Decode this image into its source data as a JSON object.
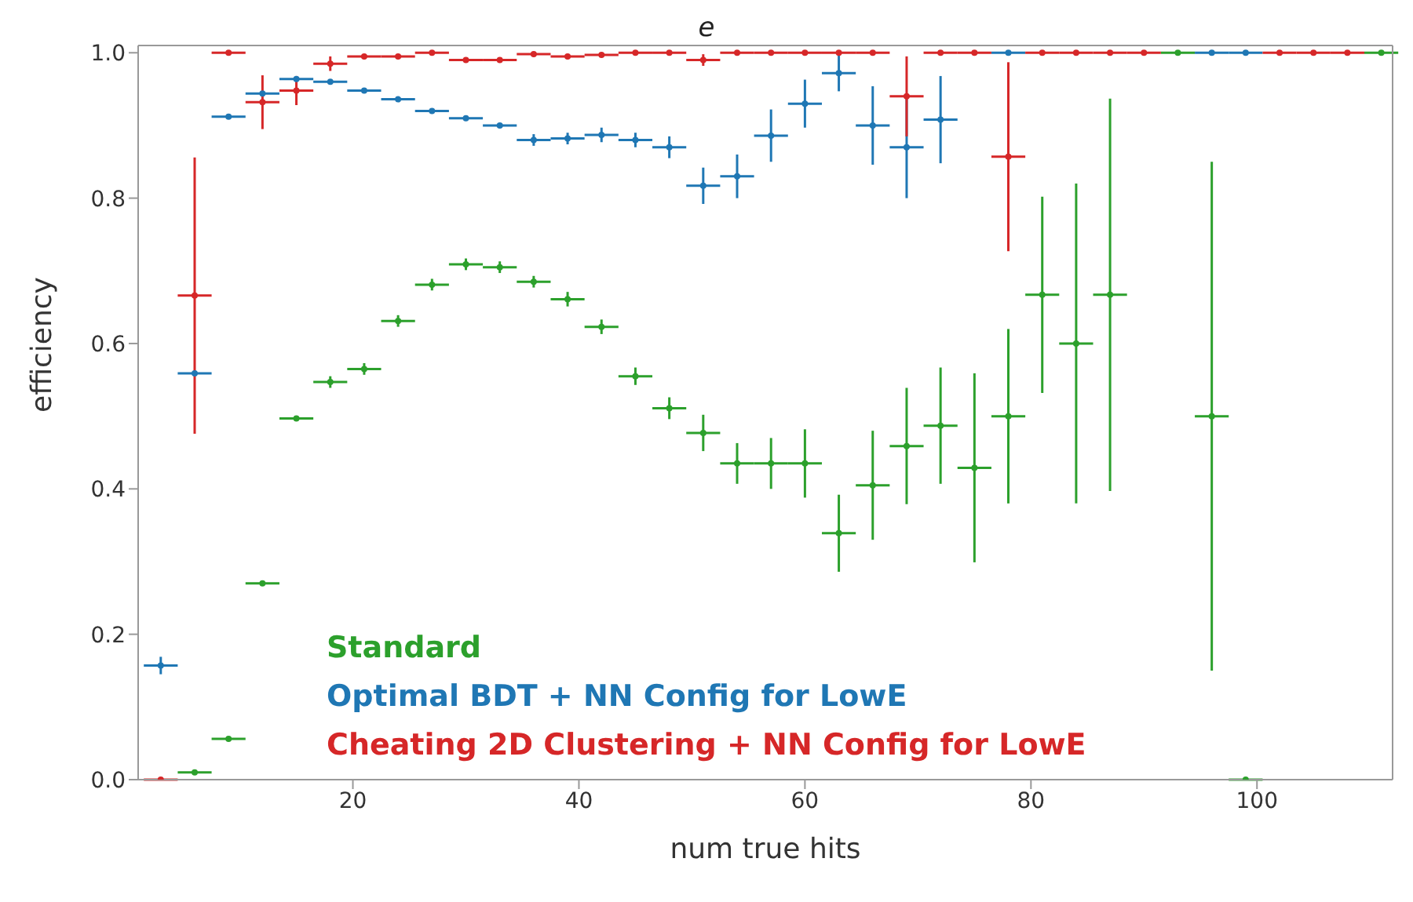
{
  "chart_data": {
    "type": "scatter",
    "title": "e",
    "xlabel": "num true hits",
    "ylabel": "efficiency",
    "xlim": [
      1,
      112
    ],
    "ylim": [
      0,
      1.01
    ],
    "xticks": [
      20,
      40,
      60,
      80,
      100
    ],
    "yticks": [
      {
        "value": 0,
        "label": "0.0"
      },
      {
        "value": 0.2,
        "label": "0.2"
      },
      {
        "value": 0.4,
        "label": "0.4"
      },
      {
        "value": 0.6,
        "label": "0.6"
      },
      {
        "value": 0.8,
        "label": "0.8"
      },
      {
        "value": 1.0,
        "label": "1.0"
      }
    ],
    "grid": false,
    "legend": "bottom left",
    "marker": "circle",
    "series": [
      {
        "name": "Standard",
        "color": "#2ca02c",
        "x": [
          6,
          9,
          12,
          15,
          18,
          21,
          24,
          27,
          30,
          33,
          36,
          39,
          42,
          45,
          48,
          51,
          54,
          57,
          60,
          63,
          66,
          69,
          72,
          75,
          78,
          81,
          84,
          87,
          93,
          96,
          99,
          111
        ],
        "values": [
          0.01,
          0.056,
          0.27,
          0.497,
          0.547,
          0.565,
          0.631,
          0.681,
          0.709,
          0.705,
          0.685,
          0.661,
          0.623,
          0.555,
          0.511,
          0.477,
          0.435,
          0.435,
          0.435,
          0.339,
          0.405,
          0.459,
          0.487,
          0.429,
          0.5,
          0.667,
          0.6,
          0.667,
          1.0,
          0.5,
          0.0,
          1.0
        ],
        "errors": [
          null,
          null,
          null,
          null,
          0.008,
          0.008,
          0.008,
          0.008,
          0.008,
          0.008,
          0.008,
          0.01,
          0.01,
          0.012,
          0.015,
          0.025,
          0.028,
          0.035,
          0.047,
          0.053,
          0.075,
          0.08,
          0.08,
          0.13,
          0.12,
          0.135,
          0.22,
          0.27,
          null,
          0.35,
          null,
          null
        ],
        "xerrors": [
          1.5,
          1.5,
          1.5,
          1.5,
          1.5,
          1.5,
          1.5,
          1.5,
          1.5,
          1.5,
          1.5,
          1.5,
          1.5,
          1.5,
          1.5,
          1.5,
          1.5,
          1.5,
          1.5,
          1.5,
          1.5,
          1.5,
          1.5,
          1.5,
          1.5,
          1.5,
          1.5,
          1.5,
          1.5,
          1.5,
          1.5,
          1.5
        ]
      },
      {
        "name": "Optimal BDT + NN Config for LowE",
        "color": "#1f77b4",
        "x": [
          3,
          6,
          9,
          12,
          15,
          18,
          21,
          24,
          27,
          30,
          33,
          36,
          39,
          42,
          45,
          48,
          51,
          54,
          57,
          60,
          63,
          66,
          69,
          72,
          78,
          96,
          99
        ],
        "values": [
          0.157,
          0.559,
          0.912,
          0.944,
          0.964,
          0.96,
          0.948,
          0.936,
          0.92,
          0.91,
          0.9,
          0.88,
          0.882,
          0.887,
          0.88,
          0.87,
          0.817,
          0.83,
          0.886,
          0.93,
          0.972,
          0.9,
          0.87,
          0.908,
          1.0,
          1.0,
          1.0
        ],
        "errors": [
          0.012,
          null,
          null,
          null,
          null,
          null,
          null,
          null,
          null,
          null,
          null,
          0.008,
          0.008,
          0.01,
          0.01,
          0.015,
          0.025,
          0.03,
          0.036,
          0.033,
          0.025,
          0.054,
          0.07,
          0.06,
          null,
          null,
          null
        ],
        "xerrors": [
          1.5,
          1.5,
          1.5,
          1.5,
          1.5,
          1.5,
          1.5,
          1.5,
          1.5,
          1.5,
          1.5,
          1.5,
          1.5,
          1.5,
          1.5,
          1.5,
          1.5,
          1.5,
          1.5,
          1.5,
          1.5,
          1.5,
          1.5,
          1.5,
          1.5,
          1.5,
          1.5
        ]
      },
      {
        "name": "Cheating 2D Clustering + NN Config for LowE",
        "color": "#d62728",
        "x": [
          3,
          6,
          9,
          12,
          15,
          18,
          21,
          24,
          27,
          30,
          33,
          36,
          39,
          42,
          45,
          48,
          51,
          54,
          57,
          60,
          63,
          66,
          69,
          72,
          75,
          78,
          81,
          84,
          87,
          90,
          102,
          105,
          108
        ],
        "values": [
          0.0,
          0.666,
          1.0,
          0.932,
          0.948,
          0.985,
          0.995,
          0.995,
          1.0,
          0.99,
          0.99,
          0.998,
          0.995,
          0.997,
          1.0,
          1.0,
          0.99,
          1.0,
          1.0,
          1.0,
          1.0,
          1.0,
          0.94,
          1.0,
          1.0,
          0.857,
          1.0,
          1.0,
          1.0,
          1.0,
          1.0,
          1.0,
          1.0
        ],
        "errors": [
          null,
          0.19,
          null,
          0.037,
          0.02,
          0.01,
          null,
          null,
          null,
          null,
          null,
          null,
          null,
          null,
          null,
          null,
          0.008,
          null,
          null,
          null,
          null,
          null,
          0.055,
          null,
          null,
          0.13,
          null,
          null,
          null,
          null,
          null,
          null,
          null
        ],
        "xerrors": [
          1.5,
          1.5,
          1.5,
          1.5,
          1.5,
          1.5,
          1.5,
          1.5,
          1.5,
          1.5,
          1.5,
          1.5,
          1.5,
          1.5,
          1.5,
          1.5,
          1.5,
          1.5,
          1.5,
          1.5,
          1.5,
          1.5,
          1.5,
          1.5,
          1.5,
          1.5,
          1.5,
          1.5,
          1.5,
          1.5,
          1.5,
          1.5,
          1.5
        ]
      }
    ]
  }
}
